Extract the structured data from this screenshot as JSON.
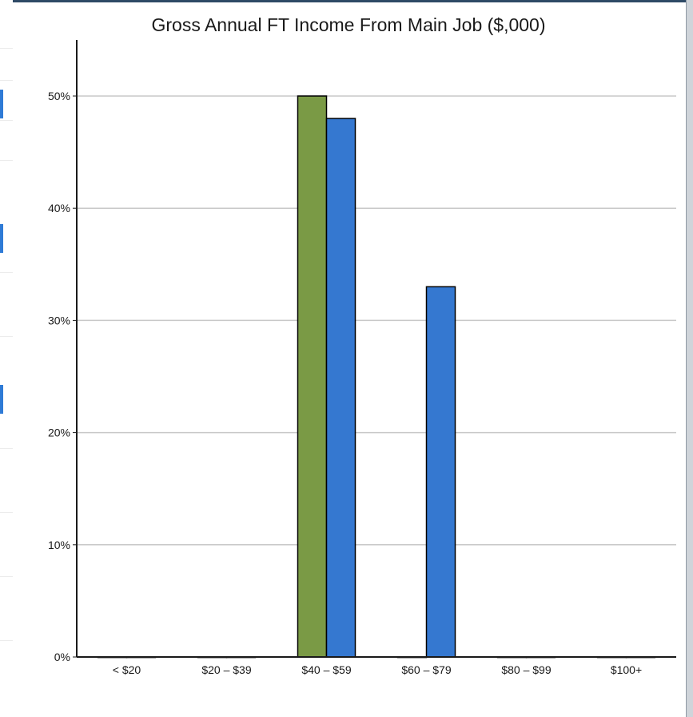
{
  "chart_data": {
    "type": "bar",
    "title": "Gross Annual FT Income From Main Job ($,000)",
    "xlabel": "",
    "ylabel": "",
    "categories": [
      "< $20",
      "$20 – $39",
      "$40 – $59",
      "$60 – $79",
      "$80 – $99",
      "$100+"
    ],
    "series": [
      {
        "values": [
          0,
          0,
          50,
          0,
          0,
          0
        ]
      },
      {
        "values": [
          0,
          0,
          48,
          33,
          0,
          0
        ]
      }
    ],
    "colors": [
      "#7a9a45",
      "#3578d0"
    ],
    "y_ticks": [
      "0%",
      "10%",
      "20%",
      "30%",
      "40%",
      "50%"
    ],
    "ylim": [
      0,
      50
    ],
    "grid": true
  }
}
